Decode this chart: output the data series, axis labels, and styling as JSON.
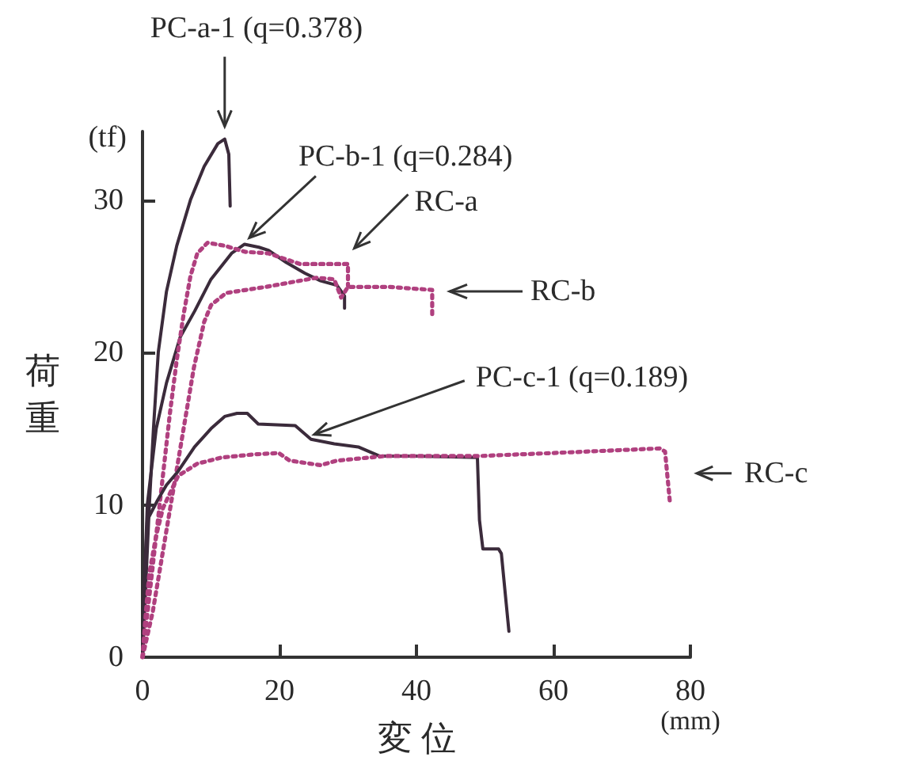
{
  "chart_data": {
    "type": "line",
    "xlabel": "変 位",
    "ylabel": "荷重",
    "xlim": [
      0,
      80
    ],
    "ylim": [
      0,
      34.5
    ],
    "xticks": [
      0,
      20,
      40,
      60,
      80
    ],
    "yticks": [
      0,
      10,
      20,
      30
    ],
    "grid": false,
    "marker": "none",
    "series": [
      {
        "color": "#3b2b3b",
        "line_style": "solid",
        "x": [
          0,
          0.5,
          1,
          1.6,
          2.3,
          3.5,
          5,
          7,
          9,
          11,
          12,
          12.6,
          12.8
        ],
        "values": [
          0,
          5,
          10,
          15,
          20,
          24,
          27,
          30,
          32.2,
          33.7,
          34,
          33,
          29.6
        ]
      },
      {
        "color": "#3b2b3b",
        "line_style": "solid",
        "x": [
          0,
          0.3,
          0.7,
          2,
          3.5,
          5.5,
          7.6,
          10,
          13,
          14.9,
          17,
          18.4,
          21,
          23.7,
          26,
          28.4,
          29.5,
          29.5
        ],
        "values": [
          0,
          5,
          10,
          15,
          18,
          21,
          22.7,
          24.8,
          26.5,
          27.1,
          26.9,
          26.7,
          25.9,
          25.2,
          24.7,
          24.4,
          23.7,
          22.9
        ]
      },
      {
        "color": "#b0407f",
        "line_style": "dotted",
        "x": [
          0,
          1,
          2,
          3,
          4,
          5,
          6,
          7,
          8,
          9.5,
          12,
          15,
          18.4,
          23,
          30,
          30
        ],
        "values": [
          0,
          4,
          8,
          12,
          16,
          19.5,
          22.5,
          25,
          26.5,
          27.2,
          27,
          26.6,
          26.5,
          25.8,
          25.8,
          24.4
        ]
      },
      {
        "color": "#b0407f",
        "line_style": "dotted",
        "x": [
          0,
          1.5,
          3,
          4.5,
          6,
          7.5,
          9,
          10,
          12.2,
          18,
          25.4,
          28,
          29,
          30,
          36,
          42.3,
          42.3
        ],
        "values": [
          0,
          3,
          7,
          11,
          15,
          19,
          22,
          23.1,
          23.9,
          24.3,
          24.9,
          24.8,
          23.6,
          24.3,
          24.3,
          24.1,
          22.3
        ]
      },
      {
        "color": "#3b2b3b",
        "line_style": "solid",
        "x": [
          0,
          0.3,
          0.7,
          2.2,
          3.5,
          5.2,
          7.6,
          10,
          12,
          13.8,
          15.3,
          16.9,
          22.3,
          24.6,
          28,
          31.5,
          34.6,
          40,
          48.9,
          49.2,
          49.7,
          52,
          52.4,
          53.5
        ],
        "values": [
          0,
          5,
          9,
          10.3,
          11.3,
          12.2,
          13.8,
          15,
          15.8,
          16,
          16,
          15.3,
          15.2,
          14.3,
          14,
          13.8,
          13.2,
          13.2,
          13.1,
          9,
          7.1,
          7.1,
          6.8,
          1.7
        ]
      },
      {
        "color": "#b0407f",
        "line_style": "dotted",
        "x": [
          0,
          0.5,
          1,
          2,
          3,
          5.2,
          8,
          11.5,
          16,
          19.9,
          21.5,
          26,
          28.4,
          35.4,
          49,
          60,
          75.5,
          76.3,
          77
        ],
        "values": [
          0,
          3,
          5.5,
          8,
          9.8,
          11.9,
          12.7,
          13.1,
          13.3,
          13.4,
          12.9,
          12.6,
          12.9,
          13.2,
          13.2,
          13.4,
          13.7,
          13.5,
          10.2
        ]
      }
    ],
    "annotations": [
      {
        "text": "PC-a-1 (q=0.378)",
        "x": 12,
        "y": 34
      },
      {
        "text": "PC-b-1 (q=0.284)",
        "x": 14.9,
        "y": 27.1
      },
      {
        "text": "RC-a",
        "x": 30,
        "y": 25.8
      },
      {
        "text": "PC-c-1 (q=0.189)",
        "x": 24.6,
        "y": 14.3
      },
      {
        "text": "RC-c",
        "x": 77,
        "y": 10.2
      },
      "(tf)",
      "(mm)",
      "RC-b"
    ]
  }
}
